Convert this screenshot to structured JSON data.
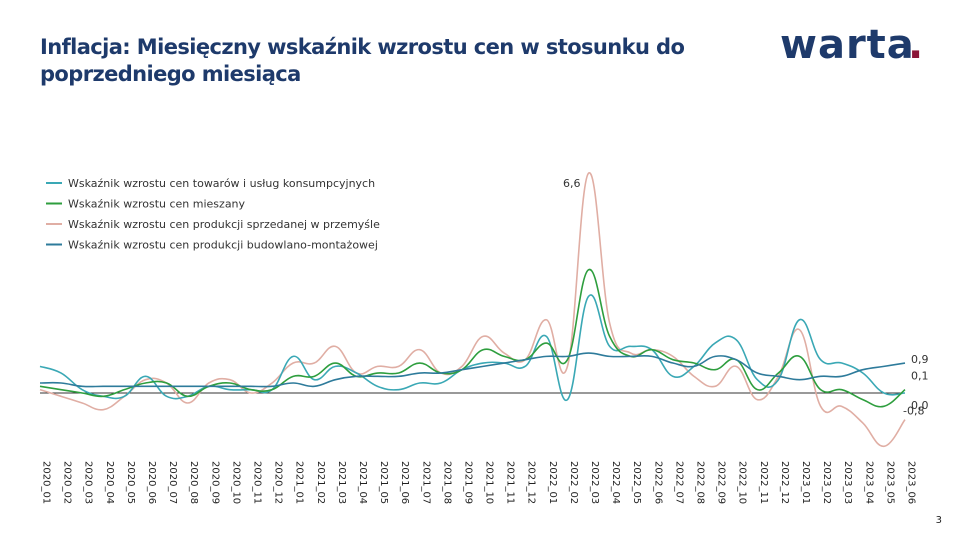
{
  "title": "Inflacja: Miesięczny wskaźnik wzrostu cen w stosunku do poprzedniego miesiąca",
  "logo": {
    "text": "warta",
    "dot": ".",
    "text_color": "#1e3a6b",
    "dot_color": "#8a1538"
  },
  "page_number": "3",
  "chart_data": {
    "type": "line",
    "title": "",
    "xlabel": "",
    "ylabel": "",
    "ylim": [
      -1.5,
      5.5
    ],
    "grid": false,
    "legend_position": "top-left",
    "categories": [
      "2020_01",
      "2020_02",
      "2020_03",
      "2020_04",
      "2020_05",
      "2020_06",
      "2020_07",
      "2020_08",
      "2020_09",
      "2020_10",
      "2020_11",
      "2020_12",
      "2021_01",
      "2021_02",
      "2021_03",
      "2021_04",
      "2021_05",
      "2021_06",
      "2021_07",
      "2021_08",
      "2021_09",
      "2021_10",
      "2021_11",
      "2021_12",
      "2022_01",
      "2022_02",
      "2022_03",
      "2022_04",
      "2022_05",
      "2022_06",
      "2022_07",
      "2022_08",
      "2022_09",
      "2022_10",
      "2022_11",
      "2022_12",
      "2023_01",
      "2023_02",
      "2023_03",
      "2023_04",
      "2023_05",
      "2023_06"
    ],
    "series": [
      {
        "name": "Wskaźnik wzrostu cen towarów i usług konsumpcyjnych",
        "color": "#3aa8b5",
        "values": [
          0.8,
          0.6,
          0.1,
          -0.1,
          -0.1,
          0.5,
          -0.1,
          -0.1,
          0.2,
          0.1,
          0.1,
          0.1,
          1.1,
          0.4,
          0.8,
          0.6,
          0.2,
          0.1,
          0.3,
          0.3,
          0.7,
          0.9,
          0.9,
          0.8,
          1.7,
          -0.2,
          2.9,
          1.4,
          1.4,
          1.3,
          0.5,
          0.8,
          1.5,
          1.6,
          0.4,
          0.4,
          2.2,
          1.0,
          0.9,
          0.6,
          0.0,
          0.0
        ]
      },
      {
        "name": "Wskaźnik wzrostu cen mieszany",
        "color": "#2e9e3e",
        "values": [
          0.2,
          0.1,
          0.0,
          -0.1,
          0.1,
          0.3,
          0.3,
          -0.1,
          0.2,
          0.3,
          0.1,
          0.1,
          0.5,
          0.5,
          0.9,
          0.5,
          0.6,
          0.6,
          0.9,
          0.6,
          0.7,
          1.3,
          1.1,
          1.0,
          1.5,
          1.0,
          3.7,
          1.7,
          1.1,
          1.3,
          1.0,
          0.9,
          0.7,
          1.0,
          0.1,
          0.6,
          1.1,
          0.1,
          0.1,
          -0.2,
          -0.4,
          0.1
        ]
      },
      {
        "name": "Wskaźnik wzrostu cen produkcji sprzedanej w przemyśle",
        "color": "#e0aea4",
        "values": [
          0.1,
          -0.1,
          -0.3,
          -0.5,
          -0.1,
          0.4,
          0.3,
          -0.3,
          0.3,
          0.4,
          0.0,
          0.3,
          0.9,
          0.9,
          1.4,
          0.6,
          0.8,
          0.8,
          1.3,
          0.6,
          0.8,
          1.7,
          1.2,
          1.0,
          2.2,
          0.8,
          6.6,
          2.1,
          1.2,
          1.3,
          1.1,
          0.5,
          0.2,
          0.8,
          -0.2,
          0.5,
          1.9,
          -0.4,
          -0.4,
          -0.9,
          -1.6,
          -0.8
        ]
      },
      {
        "name": "Wskaźnik wzrostu cen produkcji budowlano-montażowej",
        "color": "#2e7b9b",
        "values": [
          0.3,
          0.3,
          0.2,
          0.2,
          0.2,
          0.2,
          0.2,
          0.2,
          0.2,
          0.2,
          0.2,
          0.2,
          0.3,
          0.2,
          0.4,
          0.5,
          0.5,
          0.5,
          0.6,
          0.6,
          0.7,
          0.8,
          0.9,
          1.0,
          1.1,
          1.1,
          1.2,
          1.1,
          1.1,
          1.1,
          0.9,
          0.8,
          1.1,
          1.0,
          0.6,
          0.5,
          0.4,
          0.5,
          0.5,
          0.7,
          0.8,
          0.9
        ]
      }
    ],
    "data_labels": [
      {
        "text": "6,6",
        "series": 2,
        "index": 26,
        "position": "left"
      },
      {
        "text": "0,9",
        "series": 3,
        "index": 41,
        "position": "right"
      },
      {
        "text": "0,1",
        "series": 1,
        "index": 41,
        "position": "right-upper"
      },
      {
        "text": "0,0",
        "series": 0,
        "index": 41,
        "position": "right-lower"
      },
      {
        "text": "-0,8",
        "series": 2,
        "index": 41,
        "position": "right-lower"
      }
    ]
  }
}
